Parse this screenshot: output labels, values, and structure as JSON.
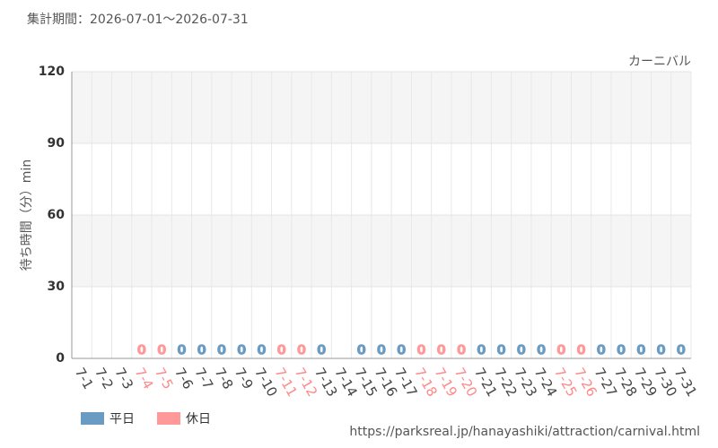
{
  "chart_data": {
    "type": "bar",
    "period": "集計期間：2026-07-01～2026-07-31",
    "title": "カーニバル",
    "y_label": "待ち時間（分）min",
    "source": "https://parksreal.jp/hanayashiki/attraction/carnival.html",
    "categories": [
      "7-1",
      "7-2",
      "7-3",
      "7-4",
      "7-5",
      "7-6",
      "7-7",
      "7-8",
      "7-9",
      "7-10",
      "7-11",
      "7-12",
      "7-13",
      "7-14",
      "7-15",
      "7-16",
      "7-17",
      "7-18",
      "7-19",
      "7-20",
      "7-21",
      "7-22",
      "7-23",
      "7-24",
      "7-25",
      "7-26",
      "7-27",
      "7-28",
      "7-29",
      "7-30",
      "7-31"
    ],
    "series": [
      {
        "name": "平日",
        "color": "#6a9bc3",
        "values": [
          null,
          null,
          null,
          null,
          null,
          0,
          0,
          0,
          0,
          0,
          null,
          null,
          0,
          null,
          0,
          0,
          0,
          null,
          null,
          null,
          0,
          0,
          0,
          0,
          null,
          null,
          0,
          0,
          0,
          0,
          0
        ]
      },
      {
        "name": "休日",
        "color": "#ff9999",
        "values": [
          null,
          null,
          null,
          0,
          0,
          null,
          null,
          null,
          null,
          null,
          0,
          0,
          null,
          null,
          null,
          null,
          null,
          0,
          0,
          0,
          null,
          null,
          null,
          null,
          0,
          0,
          null,
          null,
          null,
          null,
          null
        ]
      }
    ],
    "ylim": [
      0,
      120
    ],
    "yticks": [
      0,
      30,
      60,
      90,
      120
    ],
    "grid": true
  }
}
